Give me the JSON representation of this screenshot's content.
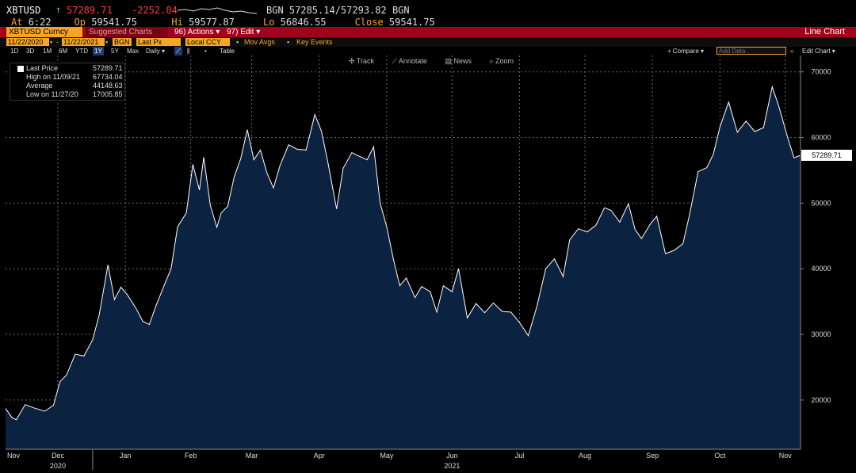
{
  "header": {
    "ticker": "XBTUSD",
    "arrow": "↑",
    "last": "57289.71",
    "change": "-2252.04",
    "bidask": "BGN 57285.14/57293.82 BGN",
    "at_label": "At",
    "at_value": "6:22",
    "op_label": "Op",
    "op_value": "59541.75",
    "hi_label": "Hi",
    "hi_value": "59577.87",
    "lo_label": "Lo",
    "lo_value": "56846.55",
    "close_label": "Close",
    "close_value": "59541.75"
  },
  "titlebar": {
    "security": "XBTUSD Curncy",
    "suggested": "Suggested Charts",
    "actions": "96) Actions ▾",
    "edit": "97) Edit ▾",
    "chart_title": "Line Chart"
  },
  "params": {
    "start_date": "11/22/2020",
    "end_date": "11/22/2021",
    "source": "BGN",
    "field": "Last Px",
    "currency": "Local CCY",
    "mov_avgs": "Mov Avgs",
    "key_events": "Key Events"
  },
  "rangebar": {
    "periods": [
      "1D",
      "3D",
      "1M",
      "6M",
      "YTD",
      "1Y",
      "5Y",
      "Max"
    ],
    "selected": "1Y",
    "frequency": "Daily ▾",
    "table": "Table",
    "compare": "+ Compare ▾",
    "add_data_placeholder": "Add Data",
    "edit_chart": "Edit Chart ▾"
  },
  "toolbar": {
    "track": "Track",
    "annotate": "Annotate",
    "news": "News",
    "zoom": "Zoom"
  },
  "legend": {
    "last_label": "Last Price",
    "last_value": "57289.71",
    "high_label": "High on 11/09/21",
    "high_value": "67734.04",
    "avg_label": "Average",
    "avg_value": "44148.63",
    "low_label": "Low on 11/27/20",
    "low_value": "17005.85"
  },
  "colors": {
    "area_fill": "#0b2240",
    "line": "#ffffff",
    "grid": "#555555",
    "accent_orange": "#f5a623",
    "bar_red": "#a3001b",
    "up_green": "#3fd16a",
    "down_red": "#ff3b3b"
  },
  "chart_data": {
    "type": "area",
    "title": "",
    "xlabel": "",
    "ylabel": "",
    "ylim": [
      12500,
      72500
    ],
    "yticks": [
      20000,
      30000,
      40000,
      50000,
      60000,
      70000
    ],
    "ytick_labels": [
      "20000",
      "30000",
      "40000",
      "50000",
      "60000",
      "70000"
    ],
    "xlim": [
      "2020-11-22",
      "2021-11-22"
    ],
    "month_ticks": [
      {
        "label": "Nov",
        "date": "2020-11-20"
      },
      {
        "label": "Dec",
        "date": "2020-12-16"
      },
      {
        "label": "Jan",
        "date": "2021-01-16"
      },
      {
        "label": "Feb",
        "date": "2021-02-15"
      },
      {
        "label": "Mar",
        "date": "2021-03-15"
      },
      {
        "label": "Apr",
        "date": "2021-04-15"
      },
      {
        "label": "May",
        "date": "2021-05-16"
      },
      {
        "label": "Jun",
        "date": "2021-06-15"
      },
      {
        "label": "Jul",
        "date": "2021-07-16"
      },
      {
        "label": "Aug",
        "date": "2021-08-15"
      },
      {
        "label": "Sep",
        "date": "2021-09-15"
      },
      {
        "label": "Oct",
        "date": "2021-10-16"
      },
      {
        "label": "Nov",
        "date": "2021-11-15"
      }
    ],
    "year_labels": [
      {
        "label": "2020",
        "date": "2020-12-16"
      },
      {
        "label": "2021",
        "date": "2021-06-15"
      }
    ],
    "year_separators": [
      "2021-01-01"
    ],
    "last_value_label": "57289.71",
    "series": [
      {
        "x": [
          "2020-11-22",
          "2020-11-25",
          "2020-11-27",
          "2020-12-01",
          "2020-12-05",
          "2020-12-10",
          "2020-12-14",
          "2020-12-17",
          "2020-12-20",
          "2020-12-24",
          "2020-12-28",
          "2021-01-01",
          "2021-01-04",
          "2021-01-08",
          "2021-01-11",
          "2021-01-14",
          "2021-01-17",
          "2021-01-21",
          "2021-01-24",
          "2021-01-27",
          "2021-01-30",
          "2021-02-03",
          "2021-02-06",
          "2021-02-09",
          "2021-02-13",
          "2021-02-16",
          "2021-02-19",
          "2021-02-21",
          "2021-02-24",
          "2021-02-27",
          "2021-03-01",
          "2021-03-04",
          "2021-03-07",
          "2021-03-10",
          "2021-03-13",
          "2021-03-16",
          "2021-03-19",
          "2021-03-22",
          "2021-03-25",
          "2021-03-28",
          "2021-04-01",
          "2021-04-05",
          "2021-04-09",
          "2021-04-13",
          "2021-04-16",
          "2021-04-19",
          "2021-04-23",
          "2021-04-26",
          "2021-04-30",
          "2021-05-03",
          "2021-05-07",
          "2021-05-10",
          "2021-05-13",
          "2021-05-16",
          "2021-05-19",
          "2021-05-22",
          "2021-05-25",
          "2021-05-29",
          "2021-06-01",
          "2021-06-05",
          "2021-06-08",
          "2021-06-11",
          "2021-06-15",
          "2021-06-18",
          "2021-06-22",
          "2021-06-26",
          "2021-06-30",
          "2021-07-04",
          "2021-07-08",
          "2021-07-12",
          "2021-07-16",
          "2021-07-20",
          "2021-07-24",
          "2021-07-28",
          "2021-08-01",
          "2021-08-05",
          "2021-08-08",
          "2021-08-12",
          "2021-08-16",
          "2021-08-20",
          "2021-08-24",
          "2021-08-27",
          "2021-08-31",
          "2021-09-04",
          "2021-09-07",
          "2021-09-10",
          "2021-09-14",
          "2021-09-17",
          "2021-09-21",
          "2021-09-25",
          "2021-09-29",
          "2021-10-02",
          "2021-10-06",
          "2021-10-10",
          "2021-10-13",
          "2021-10-16",
          "2021-10-20",
          "2021-10-24",
          "2021-10-28",
          "2021-11-01",
          "2021-11-05",
          "2021-11-09",
          "2021-11-12",
          "2021-11-16",
          "2021-11-19",
          "2021-11-22"
        ],
        "y": [
          18700,
          17300,
          17000,
          19300,
          18800,
          18300,
          19200,
          22800,
          23800,
          27000,
          26700,
          29200,
          33000,
          40600,
          35300,
          37200,
          36000,
          33900,
          32000,
          31500,
          34300,
          37600,
          40000,
          46400,
          48500,
          55900,
          52000,
          57000,
          49700,
          46300,
          48500,
          49500,
          54000,
          56800,
          61200,
          56600,
          58100,
          54600,
          52300,
          55700,
          58900,
          58200,
          58100,
          63500,
          61000,
          56200,
          49100,
          55300,
          57700,
          57200,
          56600,
          58600,
          50000,
          46400,
          41600,
          37400,
          38600,
          35600,
          37300,
          36500,
          33400,
          37400,
          36500,
          40000,
          32500,
          34700,
          33300,
          34800,
          33500,
          33400,
          31800,
          29800,
          34300,
          40000,
          41500,
          38800,
          44400,
          46100,
          45600,
          46600,
          49300,
          48900,
          47100,
          49900,
          46000,
          44600,
          46800,
          48000,
          42300,
          42800,
          43800,
          48200,
          54800,
          55400,
          57500,
          61600,
          65400,
          60800,
          62500,
          60900,
          61500,
          67734,
          64800,
          60100,
          56900,
          57289.71
        ]
      }
    ]
  }
}
